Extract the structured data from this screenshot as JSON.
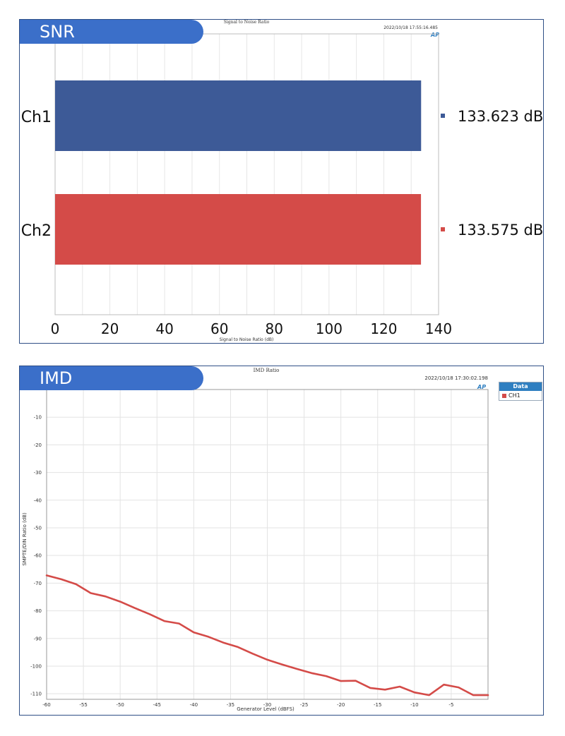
{
  "snr": {
    "tab": "SNR",
    "chart_title": "Signal to Noise Ratio",
    "timestamp": "2022/10/18 17:55:16.485",
    "colors": {
      "ch1": "#3d5a97",
      "ch2": "#d44b48"
    },
    "chart_data": {
      "type": "bar",
      "orientation": "horizontal",
      "categories": [
        "Ch1",
        "Ch2"
      ],
      "values": [
        133.623,
        133.575
      ],
      "value_labels": [
        "133.623 dB",
        "133.575 dB"
      ],
      "xlabel": "Signal to Noise Ratio (dB)",
      "xlim": [
        0,
        140
      ],
      "xticks": [
        0,
        20,
        40,
        60,
        80,
        100,
        120,
        140
      ],
      "grid": true
    }
  },
  "imd": {
    "tab": "IMD",
    "chart_title": "IMD Ratio",
    "timestamp": "2022/10/18 17:30:02.198",
    "legend": {
      "title": "Data",
      "items": [
        "CH1"
      ]
    },
    "colors": {
      "ch1": "#d44b48"
    },
    "chart_data": {
      "type": "line",
      "xlabel": "Generator Level (dBFS)",
      "ylabel": "SMPTE/DIN Ratio (dB)",
      "xlim": [
        -60,
        0
      ],
      "ylim": [
        -112,
        0
      ],
      "xticks": [
        -60,
        -55,
        -50,
        -45,
        -40,
        -35,
        -30,
        -25,
        -20,
        -15,
        -10,
        -5
      ],
      "yticks": [
        -10,
        -20,
        -30,
        -40,
        -50,
        -60,
        -70,
        -80,
        -90,
        -100,
        -110
      ],
      "grid": true,
      "series": [
        {
          "name": "CH1",
          "x": [
            -60,
            -58,
            -56,
            -54,
            -52,
            -50,
            -48,
            -46,
            -44,
            -42,
            -40,
            -38,
            -36,
            -34,
            -32,
            -30,
            -28,
            -26,
            -24,
            -22,
            -20,
            -18,
            -16,
            -14,
            -12,
            -10,
            -8,
            -6,
            -4,
            -2,
            0
          ],
          "y": [
            -67.2,
            -68.6,
            -70.4,
            -73.6,
            -74.8,
            -76.7,
            -79.0,
            -81.2,
            -83.7,
            -84.6,
            -87.8,
            -89.4,
            -91.5,
            -93.1,
            -95.5,
            -97.7,
            -99.4,
            -101.0,
            -102.5,
            -103.6,
            -105.4,
            -105.3,
            -107.9,
            -108.5,
            -107.4,
            -109.5,
            -110.5,
            -106.7,
            -107.7,
            -110.5,
            -110.5
          ]
        }
      ]
    }
  }
}
